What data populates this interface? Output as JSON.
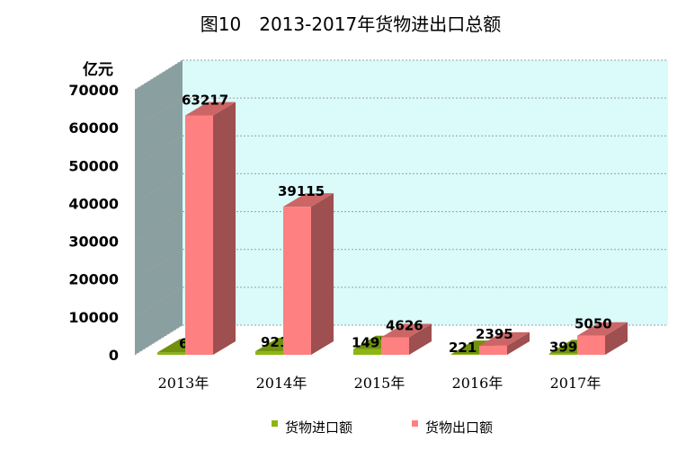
{
  "chart_data": {
    "type": "bar",
    "title": "图10　2013-2017年货物进出口总额",
    "ylabel": "亿元",
    "xlabel": "",
    "categories": [
      "2013年",
      "2014年",
      "2015年",
      "2016年",
      "2017年"
    ],
    "series": [
      {
        "name": "货物进口额",
        "values": [
          620,
          921,
          1497,
          221,
          399
        ],
        "color": "#8db512"
      },
      {
        "name": "货物出口额",
        "values": [
          63217,
          39115,
          4626,
          2395,
          5050
        ],
        "color": "#ff8080"
      }
    ],
    "ylim": [
      0,
      70000
    ],
    "yticks": [
      "0",
      "10000",
      "20000",
      "30000",
      "40000",
      "50000",
      "60000",
      "70000"
    ],
    "legend_position": "bottom",
    "grid": true,
    "style": "3d",
    "colors": {
      "back_wall": "#dbfafa",
      "side_wall": "#8aa0a0",
      "grid": "#9aa0a0"
    }
  }
}
